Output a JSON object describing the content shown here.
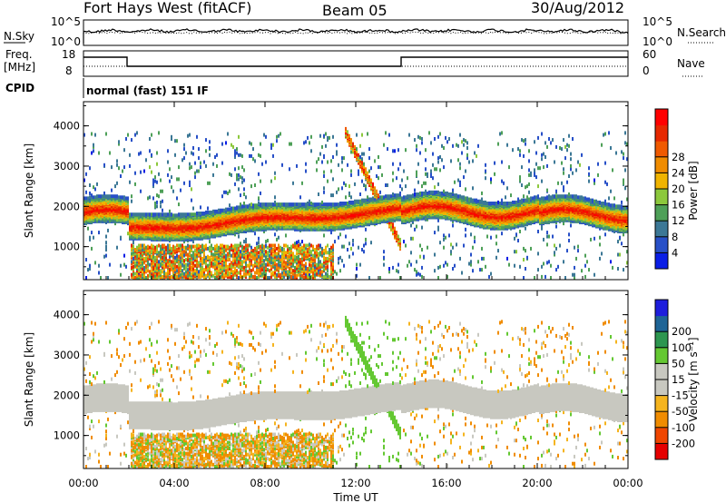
{
  "header": {
    "station": "Fort Hays West (fitACF)",
    "beam": "Beam 05",
    "date": "30/Aug/2012"
  },
  "panels": {
    "nsky_label": "N.Sky",
    "nsearch_label": "N.Search",
    "noise_ticks": [
      "10^5",
      "10^0"
    ],
    "freq_label_1": "Freq.",
    "freq_label_2": "[MHz]",
    "freq_ticks": [
      "18",
      "8"
    ],
    "nave_label": "Nave",
    "nave_ticks": [
      "60",
      "0"
    ],
    "cpid_label": "CPID",
    "cpid_text": "normal (fast) 151 IF"
  },
  "colors": {
    "power_scale": [
      "#0a1ee6",
      "#2850c8",
      "#3c7896",
      "#4ea058",
      "#8cc83c",
      "#f0b400",
      "#f08c00",
      "#f05a00",
      "#e62800",
      "#ff0000"
    ],
    "velocity_scale": [
      "#e60000",
      "#f04600",
      "#f08c00",
      "#f5b41e",
      "#c8c8c0",
      "#c8c8c0",
      "#64c832",
      "#2d9650",
      "#1e6496",
      "#1e1edc"
    ]
  },
  "chart_data": [
    {
      "type": "heatmap",
      "name": "power",
      "ylabel": "Slant Range [km]",
      "ylim": [
        180,
        4600
      ],
      "yticks": [
        1000,
        2000,
        3000,
        4000
      ],
      "x_range": [
        "00:00",
        "24:00"
      ],
      "colorbar": {
        "label": "Power [dB]",
        "ticks": [
          4,
          8,
          12,
          16,
          20,
          24,
          28
        ],
        "range": [
          0,
          32
        ]
      }
    },
    {
      "type": "heatmap",
      "name": "velocity",
      "ylabel": "Slant Range [km]",
      "xlabel": "Time UT",
      "ylim": [
        180,
        4600
      ],
      "yticks": [
        1000,
        2000,
        3000,
        4000
      ],
      "xticks": [
        "00:00",
        "04:00",
        "08:00",
        "12:00",
        "16:00",
        "20:00",
        "00:00"
      ],
      "colorbar": {
        "label": "Velocity [m s⁻¹]",
        "ticks": [
          -200,
          -100,
          -50,
          -15,
          15,
          50,
          100,
          200
        ]
      }
    }
  ]
}
